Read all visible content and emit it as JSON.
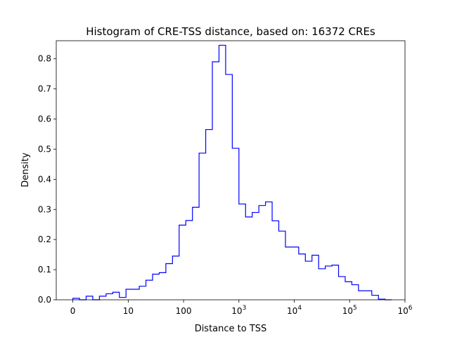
{
  "chart_data": {
    "type": "histogram-step",
    "title": "Histogram of CRE-TSS distance, based on: 16372 CREs",
    "xlabel": "Distance to TSS",
    "ylabel": "Density",
    "x_scale": "symlog",
    "xlim": [
      -0.3,
      6
    ],
    "ylim": [
      0,
      0.86
    ],
    "x_ticks": [
      {
        "pos": 0,
        "base": "0",
        "exp": ""
      },
      {
        "pos": 1,
        "base": "10",
        "exp": ""
      },
      {
        "pos": 2,
        "base": "100",
        "exp": ""
      },
      {
        "pos": 3,
        "base": "10",
        "exp": "3"
      },
      {
        "pos": 4,
        "base": "10",
        "exp": "4"
      },
      {
        "pos": 5,
        "base": "10",
        "exp": "5"
      },
      {
        "pos": 6,
        "base": "10",
        "exp": "6"
      }
    ],
    "y_ticks": [
      "0.0",
      "0.1",
      "0.2",
      "0.3",
      "0.4",
      "0.5",
      "0.6",
      "0.7",
      "0.8"
    ],
    "line_color": "#0000ff",
    "bin_edges": [
      0,
      0.12,
      0.24,
      0.36,
      0.48,
      0.6,
      0.72,
      0.84,
      0.96,
      1.08,
      1.2,
      1.32,
      1.44,
      1.56,
      1.68,
      1.8,
      1.92,
      2.04,
      2.16,
      2.28,
      2.4,
      2.52,
      2.64,
      2.76,
      2.88,
      3.0,
      3.12,
      3.24,
      3.36,
      3.48,
      3.6,
      3.72,
      3.84,
      3.96,
      4.08,
      4.2,
      4.32,
      4.44,
      4.56,
      4.68,
      4.8,
      4.92,
      5.04,
      5.16,
      5.28,
      5.4,
      5.52,
      5.64,
      5.76
    ],
    "values": [
      0.005,
      0.0,
      0.012,
      0.0,
      0.012,
      0.02,
      0.025,
      0.008,
      0.035,
      0.035,
      0.045,
      0.065,
      0.085,
      0.09,
      0.12,
      0.145,
      0.248,
      0.263,
      0.307,
      0.487,
      0.565,
      0.79,
      0.845,
      0.748,
      0.503,
      0.318,
      0.275,
      0.29,
      0.313,
      0.325,
      0.262,
      0.228,
      0.175,
      0.175,
      0.152,
      0.128,
      0.148,
      0.103,
      0.112,
      0.115,
      0.077,
      0.06,
      0.05,
      0.03,
      0.03,
      0.015,
      0.002,
      0.0
    ]
  }
}
